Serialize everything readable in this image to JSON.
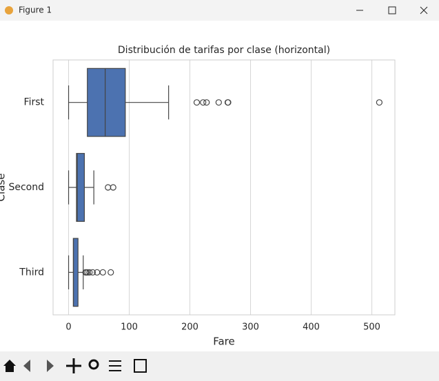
{
  "window_title": "Figure 1",
  "chart_data": {
    "type": "boxplot",
    "orientation": "horizontal",
    "title": "Distribución de tarifas por clase (horizontal)",
    "x_label": "Fare",
    "y_label": "Clase",
    "categories": [
      "First",
      "Second",
      "Third"
    ],
    "color": "#4c72b0",
    "boxes": [
      {
        "whislo": 0,
        "q1": 30.9,
        "med": 60.3,
        "q3": 93.5,
        "whishi": 164.9,
        "fliers": [
          211.3,
          221.8,
          227.5,
          247.5,
          262.4,
          263,
          512.3
        ]
      },
      {
        "whislo": 0,
        "q1": 13,
        "med": 14.25,
        "q3": 26,
        "whishi": 41.6,
        "fliers": [
          65,
          73.5
        ]
      },
      {
        "whislo": 0,
        "q1": 7.75,
        "med": 8.05,
        "q3": 15.5,
        "whishi": 24.15,
        "fliers": [
          27.9,
          29.1,
          31.3,
          34.4,
          39.7,
          46.9,
          56.5,
          69.55
        ]
      }
    ],
    "xlim": [
      -25.6,
      538
    ],
    "xticks": [
      0,
      100,
      200,
      300,
      400,
      500
    ],
    "grid": true
  }
}
